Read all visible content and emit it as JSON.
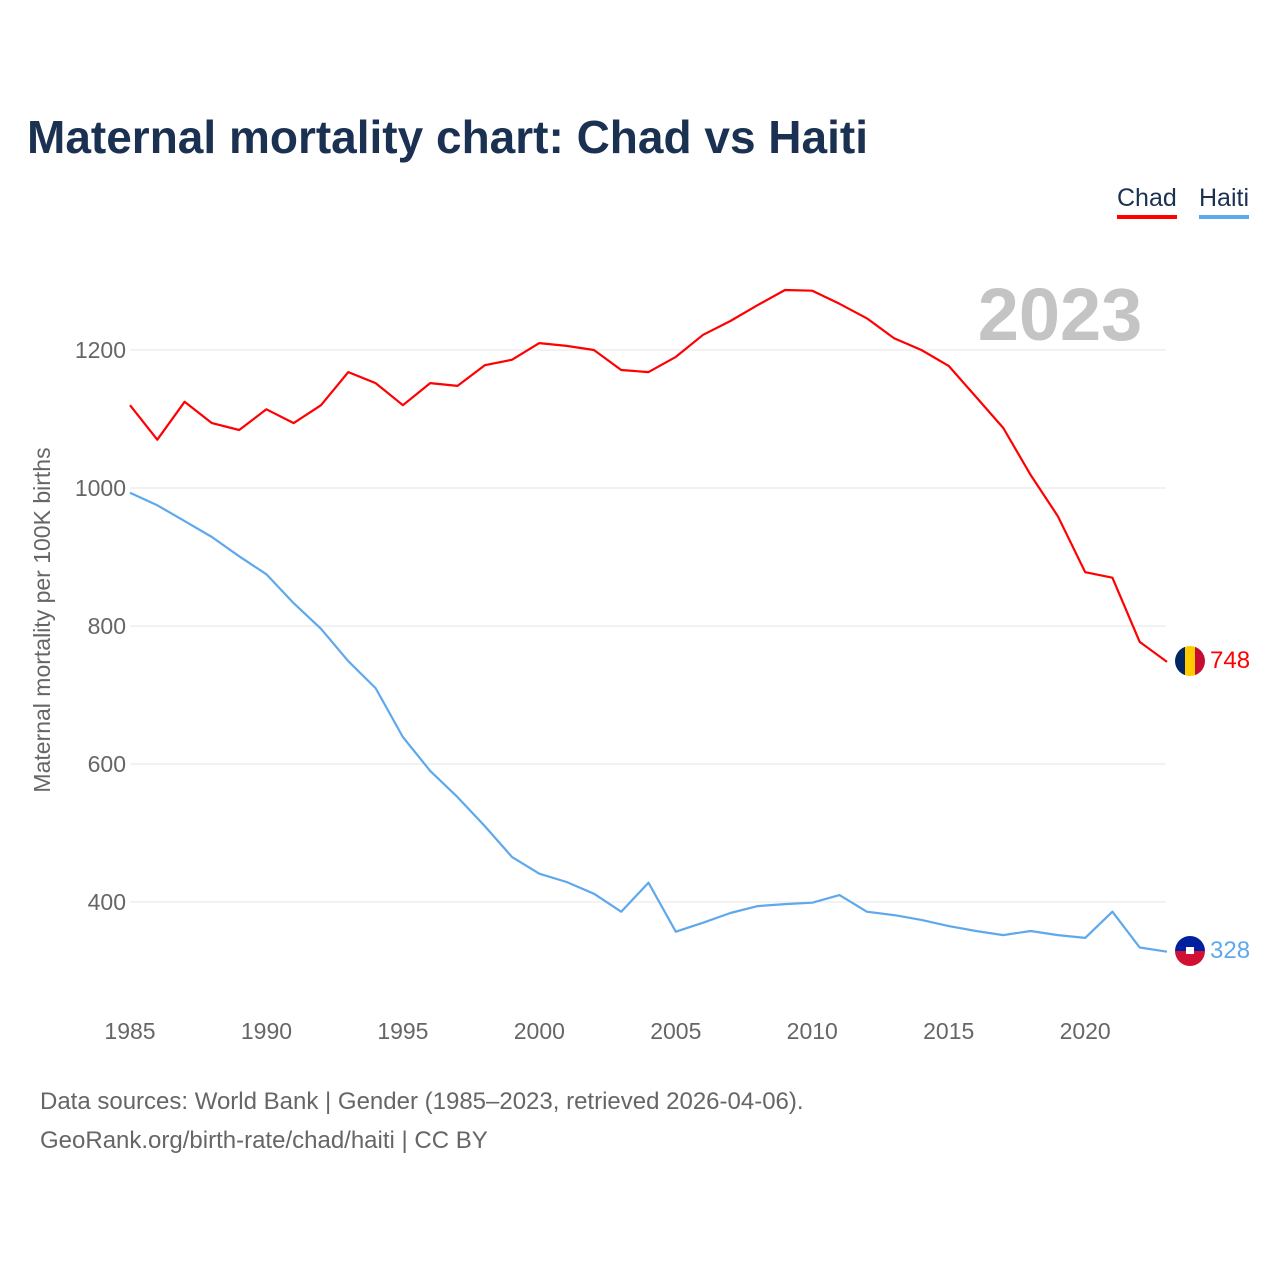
{
  "chart_data": {
    "type": "line",
    "title": "Maternal mortality chart: Chad vs Haiti",
    "xlabel": "",
    "ylabel": "Maternal mortality per 100K births",
    "year_label": "2023",
    "xlim": [
      1985,
      2023
    ],
    "ylim": [
      300,
      1300
    ],
    "x_ticks": [
      1985,
      1990,
      1995,
      2000,
      2005,
      2010,
      2015,
      2020
    ],
    "y_ticks": [
      400,
      600,
      800,
      1000,
      1200
    ],
    "grid": true,
    "legend_position": "top-right",
    "x": [
      1985,
      1986,
      1987,
      1988,
      1989,
      1990,
      1991,
      1992,
      1993,
      1994,
      1995,
      1996,
      1997,
      1998,
      1999,
      2000,
      2001,
      2002,
      2003,
      2004,
      2005,
      2006,
      2007,
      2008,
      2009,
      2010,
      2011,
      2012,
      2013,
      2014,
      2015,
      2016,
      2017,
      2018,
      2019,
      2020,
      2021,
      2022,
      2023
    ],
    "series": [
      {
        "name": "Chad",
        "color": "#ff0000",
        "end_label": "748",
        "values": [
          1120,
          1070,
          1125,
          1094,
          1084,
          1114,
          1094,
          1120,
          1168,
          1152,
          1120,
          1152,
          1148,
          1178,
          1186,
          1210,
          1206,
          1200,
          1171,
          1168,
          1190,
          1222,
          1242,
          1265,
          1287,
          1286,
          1267,
          1246,
          1217,
          1200,
          1177,
          1132,
          1087,
          1019,
          959,
          878,
          870,
          777,
          748
        ]
      },
      {
        "name": "Haiti",
        "color": "#5ea8ec",
        "end_label": "328",
        "values": [
          993,
          975,
          952,
          929,
          901,
          875,
          833,
          796,
          749,
          710,
          639,
          590,
          552,
          510,
          465,
          441,
          429,
          412,
          386,
          428,
          357,
          370,
          384,
          394,
          397,
          399,
          410,
          386,
          381,
          374,
          365,
          358,
          352,
          358,
          352,
          348,
          386,
          334,
          328
        ]
      }
    ]
  },
  "footer": {
    "line1": "Data sources: World Bank | Gender (1985–2023, retrieved 2026-04-06).",
    "line2": "GeoRank.org/birth-rate/chad/haiti | CC BY"
  }
}
